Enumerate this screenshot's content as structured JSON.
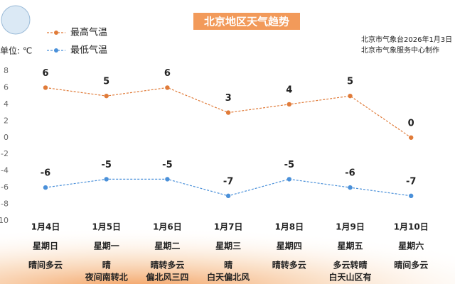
{
  "chart_data": {
    "type": "line",
    "title": "北京地区天气趋势",
    "unit_label": "单位: ℃",
    "credits": [
      "北京市气象台2026年1月3日",
      "北京市气象服务中心制作"
    ],
    "categories": [
      "1月4日",
      "1月5日",
      "1月6日",
      "1月7日",
      "1月8日",
      "1月9日",
      "1月10日"
    ],
    "weekdays": [
      "星期日",
      "星期一",
      "星期二",
      "星期三",
      "星期四",
      "星期五",
      "星期六"
    ],
    "weather": [
      [
        "晴间多云"
      ],
      [
        "晴",
        "夜间南转北"
      ],
      [
        "晴转多云",
        "偏北风三四"
      ],
      [
        "晴",
        "白天偏北风"
      ],
      [
        "晴转多云"
      ],
      [
        "多云转晴",
        "白天山区有"
      ],
      [
        "晴间多云"
      ]
    ],
    "series": [
      {
        "name": "最高气温",
        "color": "#e07b39",
        "values": [
          6,
          5,
          6,
          3,
          4,
          5,
          0
        ]
      },
      {
        "name": "最低气温",
        "color": "#4a90d9",
        "values": [
          -6,
          -5,
          -5,
          -7,
          -5,
          -6,
          -7
        ]
      }
    ],
    "ylim": [
      -10,
      8
    ],
    "yticks": [
      8,
      6,
      4,
      2,
      0,
      -2,
      -4,
      -6,
      -8,
      -10
    ],
    "grid": false
  }
}
